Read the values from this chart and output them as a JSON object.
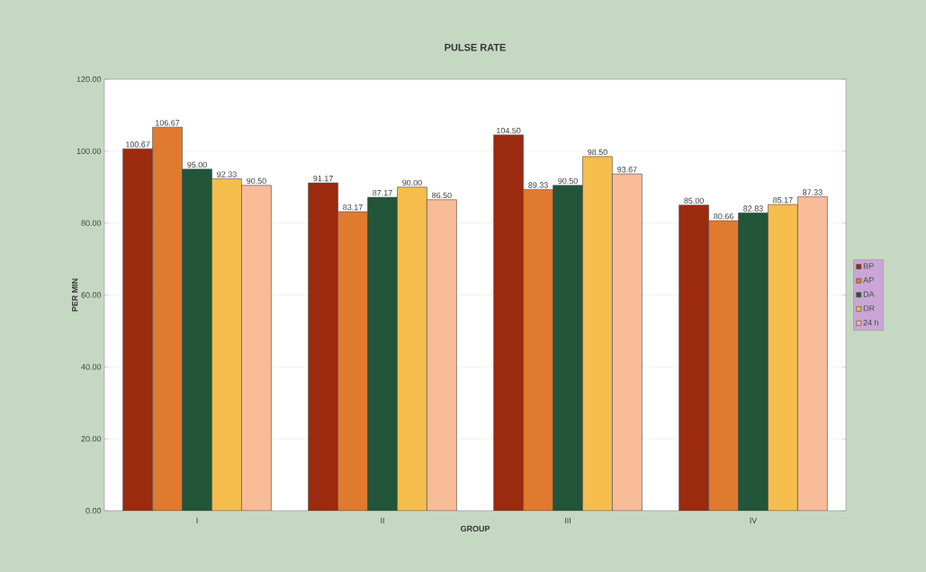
{
  "chart_data": {
    "type": "bar",
    "title": "PULSE RATE",
    "xlabel": "GROUP",
    "ylabel": "PER MIN",
    "categories": [
      "I",
      "II",
      "III",
      "IV"
    ],
    "series": [
      {
        "name": "BP",
        "color": "#9b2a0e",
        "values": [
          100.67,
          91.17,
          104.5,
          85.0
        ],
        "value_labels": [
          "100.67",
          "91.17",
          "104.50",
          "85.00"
        ]
      },
      {
        "name": "AP",
        "color": "#e07a2e",
        "values": [
          106.67,
          83.17,
          89.33,
          80.66
        ],
        "value_labels": [
          "106.67",
          "83.17",
          "89.33",
          "80.66"
        ]
      },
      {
        "name": "DA",
        "color": "#22553a",
        "values": [
          95.0,
          87.17,
          90.5,
          82.83
        ],
        "value_labels": [
          "95.00",
          "87.17",
          "90.50",
          "82.83"
        ]
      },
      {
        "name": "DR",
        "color": "#f5bd4c",
        "values": [
          92.33,
          90.0,
          98.5,
          85.17
        ],
        "value_labels": [
          "92.33",
          "90.00",
          "98.50",
          "85.17"
        ]
      },
      {
        "name": "24 h",
        "color": "#f8bb98",
        "values": [
          90.5,
          86.5,
          93.67,
          87.33
        ],
        "value_labels": [
          "90.50",
          "86.50",
          "93.67",
          "87.33"
        ]
      }
    ],
    "ylim": [
      0,
      120
    ],
    "yticks": [
      {
        "value": 0,
        "label": "0.00"
      },
      {
        "value": 20,
        "label": "20.00"
      },
      {
        "value": 40,
        "label": "40.00"
      },
      {
        "value": 60,
        "label": "60.00"
      },
      {
        "value": 80,
        "label": "80.00"
      },
      {
        "value": 100,
        "label": "100.00"
      },
      {
        "value": 120,
        "label": "120.00"
      }
    ],
    "grid": "y",
    "legend": "right"
  }
}
